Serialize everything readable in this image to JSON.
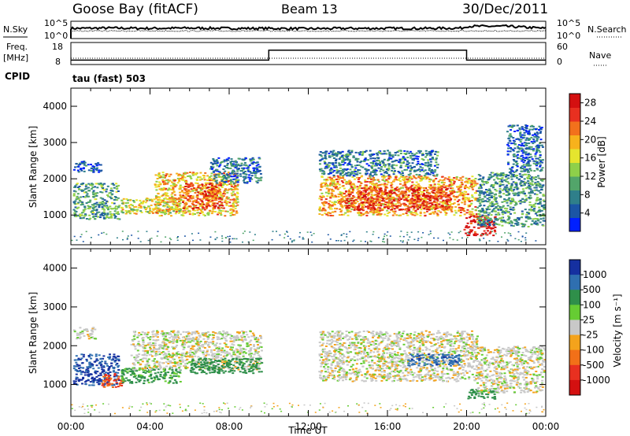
{
  "header": {
    "station": "Goose Bay (fitACF)",
    "beam": "Beam 13",
    "date": "30/Dec/2011"
  },
  "panel_labels": {
    "nsky": "N.Sky",
    "freq": "Freq.",
    "mhz": "[MHz]",
    "cpid": "CPID",
    "nsearch": "N.Search",
    "nave": "Nave",
    "mode": "tau (fast) 503"
  },
  "chart_data": [
    {
      "type": "line",
      "name": "noise",
      "y_tick_labels_left": [
        "10^5",
        "10^0"
      ],
      "y_tick_labels_right": [
        "10^5",
        "10^0"
      ],
      "x": [
        0,
        2,
        4,
        6,
        8,
        10,
        12,
        14,
        16,
        18,
        19.8,
        20,
        22,
        24
      ],
      "series": [
        {
          "name": "N.Sky",
          "values": [
            2.6,
            2.7,
            2.6,
            2.7,
            2.6,
            2.6,
            2.5,
            2.6,
            2.6,
            2.6,
            2.7,
            3.2,
            3.2,
            2.6
          ]
        }
      ]
    },
    {
      "type": "line",
      "name": "frequency",
      "yticks_left": [
        "18",
        "8"
      ],
      "yticks_right": [
        "60",
        "0"
      ],
      "series": [
        {
          "name": "Freq.",
          "x": [
            0,
            10,
            10,
            20,
            20,
            24
          ],
          "values": [
            10,
            10,
            14.5,
            14.5,
            10,
            10
          ]
        }
      ]
    },
    {
      "type": "heatmap",
      "name": "power",
      "ylabel": "Slant Range [km]",
      "xlim": [
        0,
        24
      ],
      "ylim": [
        180,
        4500
      ],
      "yticks": [
        1000,
        2000,
        3000,
        4000
      ],
      "colorbar": {
        "label": "Power [dB]",
        "ticks": [
          "4",
          "8",
          "12",
          "16",
          "20",
          "24",
          "28"
        ],
        "range": [
          0,
          30
        ],
        "colors": [
          "#0020ff",
          "#1b55a5",
          "#2f7f8a",
          "#52a56a",
          "#8ed04a",
          "#e5e52e",
          "#f7b21c",
          "#f2711c",
          "#e83020",
          "#d41010"
        ]
      },
      "regions": [
        {
          "x": [
            0.1,
            2.4
          ],
          "y": [
            900,
            1900
          ],
          "level": 10
        },
        {
          "x": [
            0.1,
            1.5
          ],
          "y": [
            2200,
            2500
          ],
          "level": 4
        },
        {
          "x": [
            2.5,
            5.5
          ],
          "y": [
            1050,
            1500
          ],
          "level": 16
        },
        {
          "x": [
            4.2,
            8.4
          ],
          "y": [
            1000,
            2200
          ],
          "level": 19
        },
        {
          "x": [
            5.6,
            7.6
          ],
          "y": [
            1200,
            1900
          ],
          "level": 25
        },
        {
          "x": [
            7.0,
            9.6
          ],
          "y": [
            1900,
            2600
          ],
          "level": 6
        },
        {
          "x": [
            12.5,
            20.5
          ],
          "y": [
            1000,
            2100
          ],
          "level": 20
        },
        {
          "x": [
            13.8,
            19.2
          ],
          "y": [
            1150,
            1800
          ],
          "level": 26
        },
        {
          "x": [
            12.5,
            18.5
          ],
          "y": [
            2100,
            2800
          ],
          "level": 7
        },
        {
          "x": [
            19.8,
            21.4
          ],
          "y": [
            450,
            1000
          ],
          "level": 29
        },
        {
          "x": [
            20.5,
            23.9
          ],
          "y": [
            700,
            2200
          ],
          "level": 9
        },
        {
          "x": [
            22.0,
            23.8
          ],
          "y": [
            2200,
            3500
          ],
          "level": 6
        }
      ]
    },
    {
      "type": "heatmap",
      "name": "velocity",
      "ylabel": "Slant Range [km]",
      "xlabel": "Time UT",
      "xlim": [
        0,
        24
      ],
      "ylim": [
        180,
        4500
      ],
      "xticks": [
        "00:00",
        "04:00",
        "08:00",
        "12:00",
        "16:00",
        "20:00",
        "00:00"
      ],
      "yticks": [
        1000,
        2000,
        3000,
        4000
      ],
      "colorbar": {
        "label": "Velocity [m s⁻¹]",
        "ticks": [
          "1000",
          "500",
          "100",
          "25",
          "-25",
          "-100",
          "-500",
          "-1000"
        ],
        "colors": [
          "#1530a0",
          "#2f6fb0",
          "#2f8f4a",
          "#66cc33",
          "#c8c8c8",
          "#f4a31c",
          "#f27018",
          "#e83020",
          "#d41010"
        ]
      },
      "regions": [
        {
          "x": [
            0.1,
            2.4
          ],
          "y": [
            1000,
            1800
          ],
          "level": 800
        },
        {
          "x": [
            0.1,
            1.2
          ],
          "y": [
            2200,
            2500
          ],
          "level": 0
        },
        {
          "x": [
            1.5,
            2.6
          ],
          "y": [
            950,
            1300
          ],
          "level": -300
        },
        {
          "x": [
            2.5,
            5.5
          ],
          "y": [
            1050,
            1450
          ],
          "level": 80
        },
        {
          "x": [
            3.0,
            9.6
          ],
          "y": [
            1400,
            2400
          ],
          "level": 0
        },
        {
          "x": [
            6.0,
            9.6
          ],
          "y": [
            1300,
            1700
          ],
          "level": 150
        },
        {
          "x": [
            12.5,
            20.5
          ],
          "y": [
            1100,
            2400
          ],
          "level": 0
        },
        {
          "x": [
            17.0,
            19.6
          ],
          "y": [
            1500,
            1800
          ],
          "level": 600
        },
        {
          "x": [
            20.0,
            21.5
          ],
          "y": [
            650,
            900
          ],
          "level": 150
        },
        {
          "x": [
            20.5,
            23.9
          ],
          "y": [
            800,
            2000
          ],
          "level": 0
        }
      ]
    }
  ]
}
